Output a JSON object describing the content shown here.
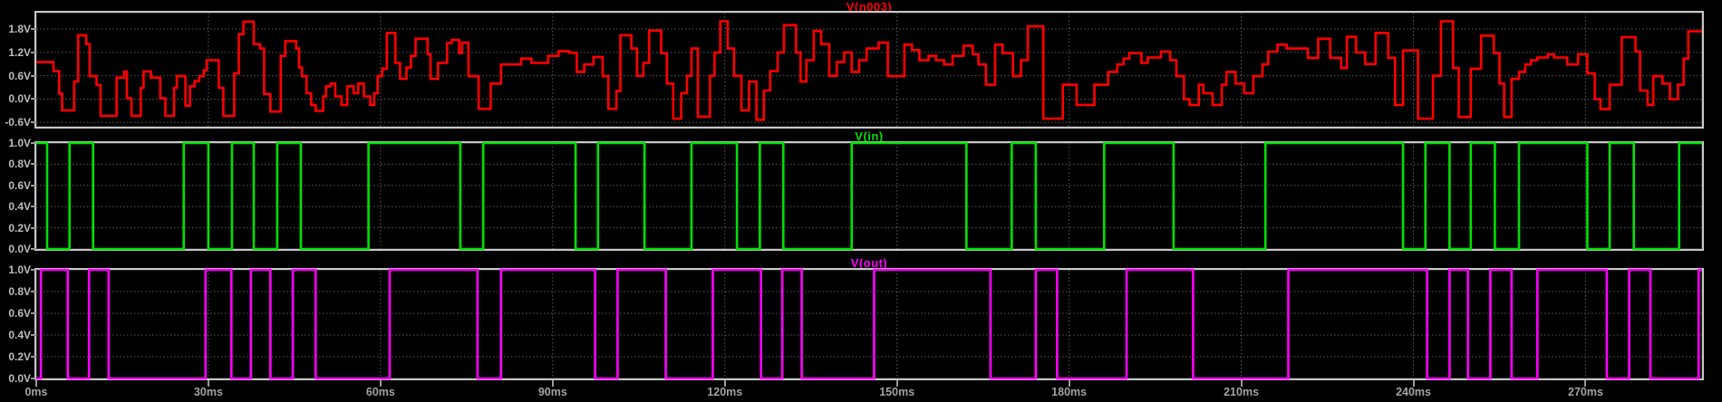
{
  "window": {
    "background": "#000000",
    "pane_border_color": "#c7c7c7",
    "grid_color": "#5c5c5c",
    "y_label_color": "#bdbdbd",
    "x_label_color": "#a2a2a2"
  },
  "x_axis": {
    "unit": "ms",
    "xlim": [
      0,
      290.3
    ],
    "ticks": [
      {
        "v": 0,
        "label": "0ms"
      },
      {
        "v": 30,
        "label": "30ms"
      },
      {
        "v": 60,
        "label": "60ms"
      },
      {
        "v": 90,
        "label": "90ms"
      },
      {
        "v": 120,
        "label": "120ms"
      },
      {
        "v": 150,
        "label": "150ms"
      },
      {
        "v": 180,
        "label": "180ms"
      },
      {
        "v": 210,
        "label": "210ms"
      },
      {
        "v": 240,
        "label": "240ms"
      },
      {
        "v": 270,
        "label": "270ms"
      }
    ]
  },
  "chart_data": [
    {
      "type": "line",
      "interpolation": "step-hold",
      "title": "V(n003)",
      "color": "#ff0000",
      "ylim": [
        -0.71,
        2.22
      ],
      "yticks": [
        {
          "v": 1.8,
          "label": "1.8V"
        },
        {
          "v": 1.2,
          "label": "1.2V"
        },
        {
          "v": 0.6,
          "label": "0.6V"
        },
        {
          "v": 0.0,
          "label": "0.0V"
        },
        {
          "v": -0.6,
          "label": "-0.6V"
        }
      ],
      "steps": {
        "t": [
          0,
          3,
          4,
          4.5,
          6.6,
          7.3,
          8.7,
          9.3,
          10.5,
          11.2,
          14,
          15.3,
          15.8,
          16.6,
          18.2,
          18.7,
          20,
          21.6,
          22.5,
          24,
          24.5,
          26,
          26.8,
          27.6,
          28.4,
          29.2,
          29.7,
          31.8,
          32.6,
          34.5,
          35.3,
          36.1,
          37.9,
          39,
          39.7,
          40.8,
          42.6,
          43.4,
          45.3,
          45.8,
          46.3,
          47.1,
          47.9,
          48.7,
          50,
          50.5,
          51.3,
          52.1,
          53.2,
          54.2,
          55.3,
          56.1,
          57.1,
          58.2,
          58.9,
          59.5,
          60.3,
          61.1,
          62.6,
          63.4,
          64.5,
          65.3,
          66.1,
          68.2,
          68.7,
          70,
          71.6,
          72.4,
          73.7,
          74.2,
          75.3,
          77.1,
          79.2,
          81,
          84.5,
          86.3,
          89.2,
          91,
          92.9,
          94.2,
          95.5,
          97.1,
          98.7,
          99.7,
          101.1,
          101.8,
          103.7,
          104.7,
          105.8,
          106.8,
          108.9,
          109.9,
          111,
          112.4,
          113.4,
          114.2,
          115.3,
          117.4,
          118.2,
          119.2,
          120.5,
          121.6,
          122.9,
          124.2,
          125.5,
          126.8,
          127.9,
          129.2,
          130.3,
          132.4,
          133.2,
          134.2,
          135.5,
          136.8,
          138.2,
          139.5,
          140.8,
          142.1,
          143.4,
          144.7,
          146.8,
          148.4,
          151.3,
          152.6,
          153.9,
          155.5,
          156.8,
          158.2,
          159.7,
          161.6,
          163.2,
          164.2,
          165.5,
          167.1,
          168.4,
          170.2,
          171.6,
          172.8,
          175.5,
          178.9,
          181.3,
          184.4,
          186.8,
          188.4,
          189.5,
          190.5,
          192.6,
          193.7,
          196,
          197.6,
          198.7,
          200,
          201,
          202.6,
          203.4,
          205,
          206.6,
          207.4,
          209,
          210.5,
          212.1,
          213.7,
          214.7,
          216.3,
          217.9,
          221.6,
          223.4,
          225.5,
          227.4,
          228.4,
          230,
          231.6,
          233.4,
          235.6,
          236.8,
          238.2,
          240.8,
          243.4,
          244.8,
          246.9,
          247.9,
          250,
          251.8,
          254,
          255,
          255.8,
          257.1,
          258.4,
          259.5,
          260.5,
          261.6,
          263.4,
          264.5,
          266.8,
          268.7,
          270.3,
          271.6,
          272.6,
          274.2,
          276.3,
          278.7,
          279.5,
          280.8,
          281.8,
          283.4,
          284.7,
          286.1,
          287.1,
          287.9
        ],
        "v": [
          0.95,
          0.72,
          0.14,
          -0.29,
          0.45,
          1.64,
          1.41,
          0.59,
          0.36,
          -0.43,
          0.55,
          0.71,
          0.02,
          -0.43,
          0.29,
          0.71,
          0.55,
          0.02,
          -0.43,
          0.29,
          0.59,
          -0.17,
          0.33,
          0.46,
          0.59,
          0.74,
          1.0,
          0.29,
          -0.43,
          0.66,
          1.67,
          1.99,
          1.41,
          1.3,
          0.13,
          -0.32,
          1.11,
          1.49,
          1.3,
          0.81,
          0.59,
          0.15,
          -0.15,
          -0.3,
          0.07,
          0.33,
          0.4,
          0.07,
          -0.15,
          0.33,
          0.15,
          0.4,
          0.07,
          -0.15,
          0.15,
          0.59,
          0.78,
          1.7,
          0.93,
          0.52,
          0.81,
          1.11,
          1.55,
          1.15,
          0.52,
          0.93,
          1.44,
          1.52,
          1.18,
          1.45,
          0.59,
          -0.25,
          0.4,
          0.89,
          1.04,
          0.93,
          1.11,
          1.23,
          1.19,
          0.7,
          0.89,
          1.08,
          0.59,
          -0.25,
          0.21,
          1.64,
          1.3,
          0.6,
          0.93,
          1.76,
          1.18,
          0.4,
          -0.5,
          0.15,
          0.6,
          1.3,
          -0.45,
          0.6,
          1.2,
          2.0,
          1.3,
          0.6,
          -0.29,
          0.45,
          -0.53,
          0.22,
          0.72,
          1.2,
          1.9,
          1.2,
          0.45,
          1.0,
          1.75,
          1.41,
          0.6,
          0.95,
          1.2,
          0.7,
          1.0,
          1.3,
          1.45,
          0.59,
          1.4,
          1.26,
          1.0,
          1.11,
          1.0,
          0.89,
          1.11,
          1.37,
          1.15,
          0.89,
          0.37,
          1.4,
          1.18,
          0.59,
          1.0,
          1.87,
          -0.5,
          0.37,
          -0.15,
          0.37,
          0.7,
          0.89,
          1.04,
          1.18,
          0.93,
          1.07,
          1.22,
          1.0,
          0.59,
          0,
          -0.15,
          0.37,
          0.15,
          -0.15,
          0.37,
          0.7,
          0.4,
          0.15,
          0.59,
          0.89,
          1.22,
          1.4,
          1.3,
          1.06,
          1.55,
          1.06,
          0.8,
          1.6,
          1.2,
          0.9,
          1.7,
          1.06,
          -0.15,
          1.25,
          -0.5,
          0.6,
          2.0,
          0.8,
          -0.46,
          0.78,
          1.63,
          1.18,
          0.4,
          -0.46,
          0.52,
          0.7,
          0.89,
          1.0,
          1.07,
          1.15,
          1.07,
          0.89,
          1.15,
          0.66,
          0,
          -0.26,
          0.37,
          1.59,
          1.22,
          0.22,
          -0.15,
          0.59,
          0.4,
          0,
          0.37,
          1.04,
          1.74
        ]
      }
    },
    {
      "type": "line",
      "interpolation": "digital",
      "title": "V(in)",
      "color": "#00e000",
      "ylim": [
        0,
        1
      ],
      "low_value": 0,
      "high_value": 1,
      "yticks": [
        {
          "v": 1.0,
          "label": "1.0V"
        },
        {
          "v": 0.8,
          "label": "0.8V"
        },
        {
          "v": 0.6,
          "label": "0.6V"
        },
        {
          "v": 0.4,
          "label": "0.4V"
        },
        {
          "v": 0.2,
          "label": "0.2V"
        },
        {
          "v": 0.0,
          "label": "0.0V"
        }
      ],
      "high_intervals": [
        [
          0,
          1.9
        ],
        [
          5.8,
          9.9
        ],
        [
          25.7,
          30
        ],
        [
          34.1,
          37.9
        ],
        [
          42,
          46.1
        ],
        [
          57.9,
          73.9
        ],
        [
          77.9,
          94
        ],
        [
          97.9,
          106
        ],
        [
          114.2,
          122.1
        ],
        [
          126.1,
          130.2
        ],
        [
          142.1,
          162.1
        ],
        [
          170,
          174.2
        ],
        [
          186.1,
          198.2
        ],
        [
          214.2,
          238.2
        ],
        [
          242.1,
          246.3
        ],
        [
          250,
          254.2
        ],
        [
          258.4,
          270.3
        ],
        [
          274.2,
          278.4
        ],
        [
          286.3,
          290.3
        ]
      ]
    },
    {
      "type": "line",
      "interpolation": "digital",
      "title": "V(out)",
      "color": "#ff00ff",
      "ylim": [
        0,
        1
      ],
      "low_value": 0,
      "high_value": 1,
      "yticks": [
        {
          "v": 1.0,
          "label": "1.0V"
        },
        {
          "v": 0.8,
          "label": "0.8V"
        },
        {
          "v": 0.6,
          "label": "0.6V"
        },
        {
          "v": 0.4,
          "label": "0.4V"
        },
        {
          "v": 0.2,
          "label": "0.2V"
        },
        {
          "v": 0.0,
          "label": "0.0V"
        }
      ],
      "high_intervals": [
        [
          0.8,
          5.5
        ],
        [
          9.2,
          12.6
        ],
        [
          29.5,
          34
        ],
        [
          37.4,
          40.8
        ],
        [
          44.7,
          48.7
        ],
        [
          61.6,
          76.9
        ],
        [
          81,
          97.4
        ],
        [
          101.3,
          109.7
        ],
        [
          117.9,
          126.3
        ],
        [
          130,
          133.4
        ],
        [
          146,
          166.3
        ],
        [
          174.2,
          177.9
        ],
        [
          190,
          201.6
        ],
        [
          218.2,
          242.4
        ],
        [
          246.3,
          249.5
        ],
        [
          253.4,
          257.1
        ],
        [
          261.6,
          273.7
        ],
        [
          277.6,
          281.3
        ],
        [
          289.7,
          290.3
        ]
      ]
    }
  ]
}
